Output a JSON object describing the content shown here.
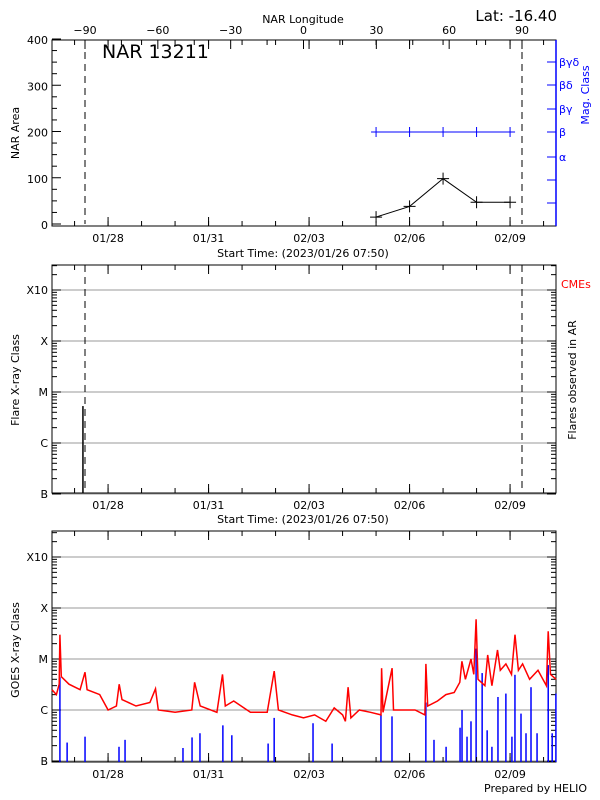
{
  "title": "NAR 13211",
  "latitude_label": "Lat: -16.40",
  "start_time_label": "Start Time: (2023/01/26 07:50)",
  "start_time": "2023/01/26 07:50",
  "date_ticks": [
    "01/28",
    "01/31",
    "02/03",
    "02/06",
    "02/09"
  ],
  "footer": "Prepared by HELIO",
  "colors": {
    "area": "#000000",
    "mag_class": "#0000ff",
    "goes_long": "#ff0000",
    "goes_short": "#0000ff",
    "cme": "#ff0000",
    "grid": "#999999"
  },
  "chart_data": [
    {
      "type": "line",
      "ylabel": "NAR Area",
      "ylim": [
        0,
        400
      ],
      "yticks": [
        "0",
        "100",
        "200",
        "300",
        "400"
      ],
      "top_axis_label": "NAR Longitude",
      "top_ticks": [
        "-90",
        "-60",
        "-30",
        "0",
        "30",
        "60",
        "90"
      ],
      "limb_longitudes": [
        -90,
        90
      ],
      "right_axis_label": "Mag. Class",
      "mag_class_ticks": [
        "α",
        "β",
        "βγ",
        "βδ",
        "βγδ"
      ],
      "area_series": [
        [
          "02/05 00:00",
          15
        ],
        [
          "02/06 00:00",
          38
        ],
        [
          "02/07 00:00",
          98
        ],
        [
          "02/08 00:00",
          47
        ],
        [
          "02/09 00:00",
          47
        ]
      ],
      "mag_class_series": [
        [
          "02/05 00:00",
          "β"
        ],
        [
          "02/06 00:00",
          "β"
        ],
        [
          "02/07 00:00",
          "β"
        ],
        [
          "02/08 00:00",
          "β"
        ],
        [
          "02/09 00:00",
          "β"
        ]
      ]
    },
    {
      "type": "bar",
      "ylabel": "Flare X-ray Class",
      "right_axis_label": "Flares observed in AR",
      "cme_label": "CMEs",
      "yticks": [
        "B",
        "C",
        "M",
        "X",
        "X10"
      ],
      "grid": true,
      "flares": [
        [
          "01/27 06:00",
          5.3e-06
        ]
      ]
    },
    {
      "type": "line",
      "ylabel": "GOES X-ray Class",
      "yticks": [
        "B",
        "C",
        "M",
        "X",
        "X10"
      ],
      "grid": true,
      "long_channel": [
        [
          "01/26 07:50",
          2.5e-06
        ],
        [
          "01/26 11:00",
          2e-06
        ],
        [
          "01/26 13:00",
          3.2e-06
        ],
        [
          "01/26 13:30",
          3e-05
        ],
        [
          "01/26 14:30",
          4.5e-06
        ],
        [
          "01/26 20:00",
          3.2e-06
        ],
        [
          "01/27 04:00",
          2.5e-06
        ],
        [
          "01/27 07:30",
          5.5e-06
        ],
        [
          "01/27 09:00",
          2.5e-06
        ],
        [
          "01/27 18:00",
          2e-06
        ],
        [
          "01/28 00:00",
          1e-06
        ],
        [
          "01/28 06:00",
          1.2e-06
        ],
        [
          "01/28 08:00",
          3.2e-06
        ],
        [
          "01/28 10:00",
          1.6e-06
        ],
        [
          "01/28 20:00",
          1.2e-06
        ],
        [
          "01/29 06:00",
          1.4e-06
        ],
        [
          "01/29 10:00",
          2.6e-06
        ],
        [
          "01/29 12:00",
          1e-06
        ],
        [
          "01/30 00:00",
          9e-07
        ],
        [
          "01/30 12:00",
          1e-06
        ],
        [
          "01/30 14:00",
          3.5e-06
        ],
        [
          "01/30 18:00",
          1.2e-06
        ],
        [
          "01/31 06:00",
          9e-07
        ],
        [
          "01/31 10:00",
          5e-06
        ],
        [
          "01/31 12:00",
          1.2e-06
        ],
        [
          "01/31 18:00",
          1.5e-06
        ],
        [
          "02/01 06:00",
          9e-07
        ],
        [
          "02/01 18:00",
          9e-07
        ],
        [
          "02/01 23:00",
          5.8e-06
        ],
        [
          "02/02 02:00",
          1e-06
        ],
        [
          "02/02 12:00",
          8e-07
        ],
        [
          "02/02 20:00",
          7e-07
        ],
        [
          "02/03 04:00",
          8e-07
        ],
        [
          "02/03 12:00",
          6e-07
        ],
        [
          "02/03 18:00",
          1.1e-06
        ],
        [
          "02/04 00:00",
          8e-07
        ],
        [
          "02/04 02:00",
          6e-07
        ],
        [
          "02/04 04:00",
          2.8e-06
        ],
        [
          "02/04 06:00",
          7e-07
        ],
        [
          "02/04 12:00",
          1e-06
        ],
        [
          "02/04 20:00",
          9e-07
        ],
        [
          "02/05 03:30",
          8e-07
        ],
        [
          "02/05 04:00",
          6.6e-06
        ],
        [
          "02/05 05:00",
          9e-07
        ],
        [
          "02/05 11:30",
          6.6e-06
        ],
        [
          "02/05 12:30",
          1e-06
        ],
        [
          "02/05 20:00",
          1e-06
        ],
        [
          "02/06 04:00",
          1e-06
        ],
        [
          "02/06 11:00",
          8e-07
        ],
        [
          "02/06 11:40",
          8e-06
        ],
        [
          "02/06 13:00",
          1.2e-06
        ],
        [
          "02/06 20:00",
          1.5e-06
        ],
        [
          "02/07 02:00",
          2e-06
        ],
        [
          "02/07 08:00",
          2.2e-06
        ],
        [
          "02/07 12:00",
          3.5e-06
        ],
        [
          "02/07 13:30",
          9e-06
        ],
        [
          "02/07 16:00",
          4e-06
        ],
        [
          "02/07 20:00",
          1e-05
        ],
        [
          "02/07 22:00",
          5e-06
        ],
        [
          "02/07 23:40",
          6e-05
        ],
        [
          "02/08 01:00",
          4e-06
        ],
        [
          "02/08 06:00",
          3e-06
        ],
        [
          "02/08 08:00",
          1.2e-05
        ],
        [
          "02/08 11:00",
          3e-06
        ],
        [
          "02/08 15:00",
          1.5e-05
        ],
        [
          "02/08 17:00",
          6e-06
        ],
        [
          "02/08 21:00",
          8e-06
        ],
        [
          "02/09 01:00",
          5e-06
        ],
        [
          "02/09 03:30",
          3e-05
        ],
        [
          "02/09 06:00",
          6e-06
        ],
        [
          "02/09 09:00",
          8e-06
        ],
        [
          "02/09 14:00",
          4e-06
        ],
        [
          "02/09 20:00",
          6e-06
        ],
        [
          "02/10 02:00",
          3e-06
        ],
        [
          "02/10 03:20",
          3.5e-05
        ],
        [
          "02/10 05:00",
          5e-06
        ],
        [
          "02/10 09:00",
          4e-06
        ]
      ],
      "short_channel": [
        [
          "01/26 13:30",
          4.4e-06
        ],
        [
          "01/26 18:40",
          2.3e-07
        ],
        [
          "01/27 07:30",
          3e-07
        ],
        [
          "01/28 07:50",
          1.9e-07
        ],
        [
          "01/28 12:10",
          2.6e-07
        ],
        [
          "01/30 05:40",
          1.8e-07
        ],
        [
          "01/30 12:10",
          2.9e-07
        ],
        [
          "01/30 17:50",
          3.5e-07
        ],
        [
          "01/31 10:15",
          5e-07
        ],
        [
          "01/31 16:40",
          3.2e-07
        ],
        [
          "02/01 18:40",
          2.2e-07
        ],
        [
          "02/01 23:00",
          7e-07
        ],
        [
          "02/03 02:50",
          5.5e-07
        ],
        [
          "02/03 16:30",
          2.2e-07
        ],
        [
          "02/05 03:30",
          8e-07
        ],
        [
          "02/05 11:25",
          7.5e-07
        ],
        [
          "02/06 11:40",
          1.4e-06
        ],
        [
          "02/06 17:30",
          2.6e-07
        ],
        [
          "02/07 02:10",
          1.9e-07
        ],
        [
          "02/07 12:10",
          4.5e-07
        ],
        [
          "02/07 13:35",
          1e-06
        ],
        [
          "02/07 17:10",
          3e-07
        ],
        [
          "02/07 20:00",
          6e-07
        ],
        [
          "02/07 23:40",
          1.6e-05
        ],
        [
          "02/08 04:00",
          5.3e-06
        ],
        [
          "02/08 07:35",
          4e-07
        ],
        [
          "02/08 11:00",
          1.9e-07
        ],
        [
          "02/08 15:20",
          1.8e-06
        ],
        [
          "02/08 21:00",
          2.1e-06
        ],
        [
          "02/09 01:20",
          3e-07
        ],
        [
          "02/09 03:30",
          4.9e-06
        ],
        [
          "02/09 07:50",
          8.5e-07
        ],
        [
          "02/09 11:25",
          3.5e-07
        ],
        [
          "02/09 15:00",
          2.8e-06
        ],
        [
          "02/09 19:20",
          3.5e-07
        ],
        [
          "02/10 03:20",
          7.6e-06
        ],
        [
          "02/10 06:10",
          3.5e-07
        ],
        [
          "02/10 08:50",
          2.1e-06
        ]
      ]
    }
  ]
}
